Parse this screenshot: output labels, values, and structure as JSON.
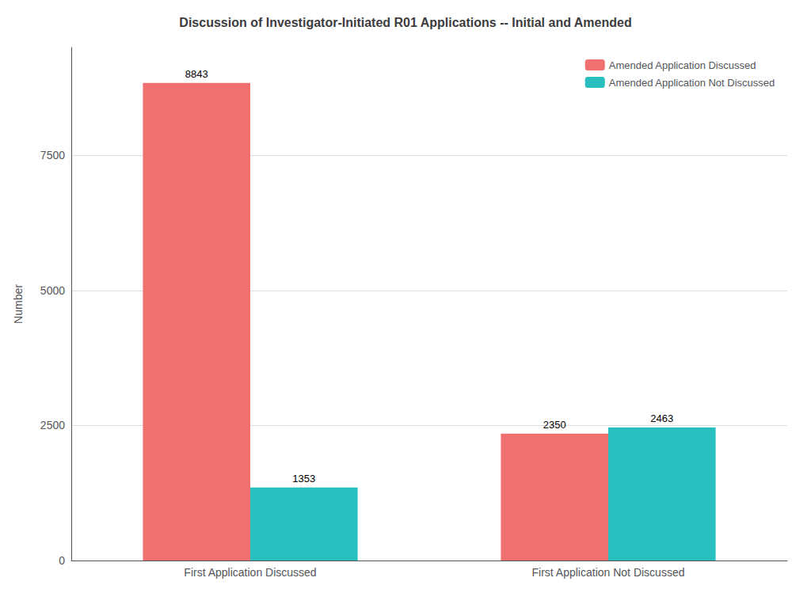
{
  "chart_data": {
    "type": "bar",
    "title": "Discussion of Investigator-Initiated R01 Applications -- Initial and Amended",
    "ylabel": "Number",
    "categories": [
      "First Application Discussed",
      "First Application Not Discussed"
    ],
    "series": [
      {
        "name": "Amended Application Discussed",
        "color": "#F07070",
        "values": [
          8843,
          2350
        ]
      },
      {
        "name": "Amended Application Not Discussed",
        "color": "#2ABFBF",
        "values": [
          1353,
          2463
        ]
      }
    ],
    "ylim": [
      0,
      9500
    ],
    "yticks": [
      0,
      2500,
      5000,
      7500
    ],
    "grid": true,
    "legend": "upper right",
    "data_labels": true
  }
}
